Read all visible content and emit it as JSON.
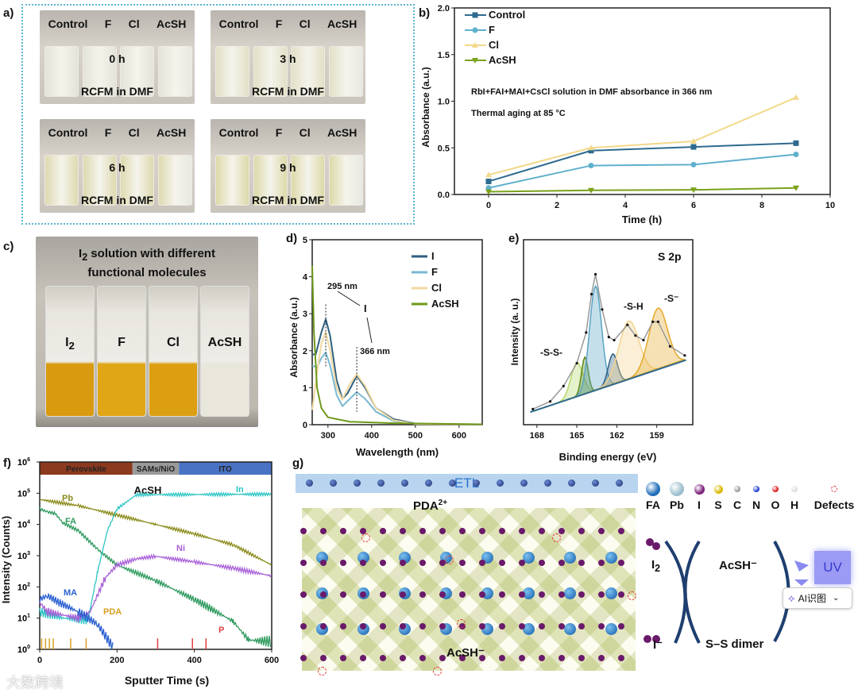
{
  "panel_labels": {
    "a": "a)",
    "b": "b)",
    "c": "c)",
    "d": "d)",
    "e": "e)",
    "f": "f)",
    "g": "g)"
  },
  "panel_a": {
    "vial_labels": [
      "Control",
      "F",
      "Cl",
      "AcSH"
    ],
    "caption": "RCFM in DMF",
    "photos": [
      {
        "time": "0 h",
        "tint": "#e4e3d8"
      },
      {
        "time": "3 h",
        "tint": "#e2e0c6"
      },
      {
        "time": "6 h",
        "tint": "#ddd9b0"
      },
      {
        "time": "9 h",
        "tint": "#dcd9a8"
      }
    ]
  },
  "panel_c": {
    "title_line1_pre": "I",
    "title_line1_sub": "2",
    "title_line1_post": " solution with different",
    "title_line2": "functional molecules",
    "vials": [
      {
        "label": "I",
        "sub": "2",
        "color": "#d99a10"
      },
      {
        "label": "F",
        "sub": "",
        "color": "#e0a616"
      },
      {
        "label": "Cl",
        "sub": "",
        "color": "#dc9f12"
      },
      {
        "label": "AcSH",
        "sub": "",
        "color": "#e9e6dc"
      }
    ]
  },
  "chart_data": [
    {
      "id": "b",
      "type": "line",
      "xlabel": "Time (h)",
      "ylabel": "Absorbance (a.u.)",
      "xlim": [
        -1,
        10
      ],
      "ylim": [
        0,
        2.0
      ],
      "xticks": [
        0,
        2,
        4,
        6,
        8,
        10
      ],
      "yticks": [
        "0.0",
        "0.5",
        "1.0",
        "1.5",
        "2.0"
      ],
      "annotations": [
        "RbI+FAI+MAI+CsCl solution in DMF absorbance in 366 nm",
        "Thermal aging at 85 °C"
      ],
      "legend": "top-left",
      "x": [
        0,
        3,
        6,
        9
      ],
      "series": [
        {
          "name": "Control",
          "color": "#2e6a8e",
          "marker": "square",
          "values": [
            0.14,
            0.47,
            0.51,
            0.55
          ]
        },
        {
          "name": "F",
          "color": "#5fb0cc",
          "marker": "circle",
          "values": [
            0.07,
            0.31,
            0.32,
            0.43
          ]
        },
        {
          "name": "Cl",
          "color": "#f2d98a",
          "marker": "triangle",
          "values": [
            0.21,
            0.5,
            0.57,
            1.04
          ]
        },
        {
          "name": "AcSH",
          "color": "#7aa21c",
          "marker": "triangle-down",
          "values": [
            0.03,
            0.045,
            0.05,
            0.07
          ]
        }
      ]
    },
    {
      "id": "d",
      "type": "line",
      "xlabel": "Wavelength (nm)",
      "ylabel": "Absorbance (a.u.)",
      "xlim": [
        264,
        653
      ],
      "ylim": [
        0,
        5
      ],
      "xticks": [
        300,
        400,
        500,
        600
      ],
      "yticks": [
        "0",
        "1",
        "2",
        "3",
        "4",
        "5"
      ],
      "legend": "top-right",
      "annotations": {
        "peak1": "295 nm",
        "peak2": "366 nm",
        "species": "I",
        "species_sub": "3",
        "species_sup": "−"
      },
      "series": [
        {
          "name": "I",
          "sub": "2",
          "color": "#2e5f80",
          "points": [
            [
              264,
              1.9
            ],
            [
              272,
              1.9
            ],
            [
              285,
              2.5
            ],
            [
              295,
              2.85
            ],
            [
              305,
              2.4
            ],
            [
              320,
              1.2
            ],
            [
              333,
              0.7
            ],
            [
              345,
              0.85
            ],
            [
              366,
              1.32
            ],
            [
              385,
              1.0
            ],
            [
              410,
              0.45
            ],
            [
              450,
              0.15
            ],
            [
              500,
              0.03
            ],
            [
              515,
              0.02
            ]
          ]
        },
        {
          "name": "F",
          "sub": "",
          "color": "#79b8d2",
          "points": [
            [
              264,
              1.6
            ],
            [
              275,
              1.55
            ],
            [
              285,
              1.8
            ],
            [
              295,
              1.95
            ],
            [
              305,
              1.6
            ],
            [
              320,
              0.8
            ],
            [
              333,
              0.5
            ],
            [
              350,
              0.7
            ],
            [
              366,
              0.88
            ],
            [
              385,
              0.7
            ],
            [
              410,
              0.35
            ],
            [
              450,
              0.1
            ],
            [
              500,
              0.02
            ]
          ]
        },
        {
          "name": "Cl",
          "sub": "",
          "color": "#f0d9a0",
          "points": [
            [
              264,
              0.4
            ],
            [
              275,
              1.4
            ],
            [
              285,
              2.2
            ],
            [
              295,
              2.5
            ],
            [
              305,
              2.0
            ],
            [
              320,
              1.0
            ],
            [
              333,
              0.68
            ],
            [
              350,
              1.1
            ],
            [
              366,
              1.36
            ],
            [
              385,
              1.05
            ],
            [
              410,
              0.45
            ],
            [
              450,
              0.12
            ],
            [
              500,
              0.02
            ],
            [
              653,
              0.01
            ]
          ]
        },
        {
          "name": "AcSH",
          "sub": "",
          "color": "#6f9a1a",
          "points": [
            [
              264,
              4.3
            ],
            [
              268,
              2.5
            ],
            [
              275,
              1.0
            ],
            [
              285,
              0.45
            ],
            [
              300,
              0.2
            ],
            [
              350,
              0.08
            ],
            [
              450,
              0.04
            ],
            [
              653,
              0.01
            ]
          ]
        }
      ]
    },
    {
      "id": "e",
      "type": "line",
      "xlabel": "Binding energy (eV)",
      "ylabel": "Intensity (a. u.)",
      "xlim": [
        169,
        156.3
      ],
      "ylim": [
        0,
        1
      ],
      "xticks": [
        168,
        165,
        162,
        159
      ],
      "title": "S 2p",
      "peak_labels": [
        "-S-S-",
        "-S-H",
        "-S⁻"
      ],
      "baseline": [
        [
          168.5,
          0.03
        ],
        [
          156.8,
          0.37
        ]
      ],
      "components": [
        {
          "center": 165.0,
          "height": 0.22,
          "width": 0.45,
          "color": "#b5d86a"
        },
        {
          "center": 164.4,
          "height": 0.24,
          "width": 0.25,
          "color": "#5a8a1c"
        },
        {
          "center": 163.6,
          "height": 0.68,
          "width": 0.45,
          "color": "#5aa4c4"
        },
        {
          "center": 162.3,
          "height": 0.2,
          "width": 0.35,
          "color": "#2e5f80"
        },
        {
          "center": 161.1,
          "height": 0.38,
          "width": 0.75,
          "color": "#f3d38c"
        },
        {
          "center": 158.9,
          "height": 0.4,
          "width": 0.7,
          "color": "#e5a82a"
        }
      ],
      "envelope": [
        [
          168.3,
          0.05
        ],
        [
          167,
          0.1
        ],
        [
          166,
          0.2
        ],
        [
          165,
          0.35
        ],
        [
          164.3,
          0.55
        ],
        [
          163.9,
          0.8
        ],
        [
          163.6,
          0.93
        ],
        [
          163.1,
          0.7
        ],
        [
          162.6,
          0.52
        ],
        [
          162.2,
          0.5
        ],
        [
          161.2,
          0.6
        ],
        [
          160.6,
          0.53
        ],
        [
          160,
          0.5
        ],
        [
          159.3,
          0.62
        ],
        [
          158.9,
          0.62
        ],
        [
          158,
          0.46
        ],
        [
          156.9,
          0.4
        ]
      ]
    },
    {
      "id": "f",
      "type": "line",
      "xlabel": "Sputter Time (s)",
      "ylabel": "Intensity (Counts)",
      "xlim": [
        0,
        600
      ],
      "ylim_log10": [
        0,
        6
      ],
      "yscale": "log",
      "xticks": [
        0,
        200,
        400,
        600
      ],
      "yticks_exp": [
        "0",
        "1",
        "2",
        "3",
        "4",
        "5",
        "6"
      ],
      "title": "AcSH",
      "layers": [
        {
          "name": "Perovskite",
          "from": 0,
          "to": 240,
          "color": "#8b3a1e"
        },
        {
          "name": "SAMs/NiO",
          "sub": "x",
          "from": 240,
          "to": 360,
          "color": "#9a9a9a"
        },
        {
          "name": "ITO",
          "from": 360,
          "to": 600,
          "color": "#4a72c4"
        }
      ],
      "series": [
        {
          "name": "Pb",
          "sup": "+",
          "color": "#8a8a1a",
          "log_points": [
            [
              0,
              4.8
            ],
            [
              100,
              4.6
            ],
            [
              200,
              4.3
            ],
            [
              300,
              4.0
            ],
            [
              400,
              3.7
            ],
            [
              500,
              3.35
            ],
            [
              600,
              2.7
            ]
          ]
        },
        {
          "name": "FA",
          "sup": "+",
          "color": "#2e9a5e",
          "log_points": [
            [
              0,
              4.5
            ],
            [
              20,
              4.4
            ],
            [
              40,
              4.35
            ],
            [
              60,
              4.05
            ],
            [
              100,
              3.8
            ],
            [
              150,
              3.2
            ],
            [
              200,
              2.7
            ],
            [
              300,
              2.2
            ],
            [
              400,
              1.6
            ],
            [
              500,
              0.9
            ],
            [
              540,
              0.3
            ],
            [
              600,
              0.25
            ]
          ]
        },
        {
          "name": "In",
          "sup": "+",
          "color": "#2cc4c4",
          "log_points": [
            [
              0,
              1.2
            ],
            [
              60,
              1.0
            ],
            [
              125,
              0.95
            ],
            [
              150,
              2.5
            ],
            [
              175,
              3.8
            ],
            [
              200,
              4.5
            ],
            [
              250,
              4.95
            ],
            [
              600,
              4.97
            ]
          ]
        },
        {
          "name": "Ni",
          "sup": "+",
          "color": "#a860d8",
          "log_points": [
            [
              0,
              1.5
            ],
            [
              20,
              1.2
            ],
            [
              100,
              1.0
            ],
            [
              130,
              1.2
            ],
            [
              170,
              2.3
            ],
            [
              200,
              2.7
            ],
            [
              250,
              2.9
            ],
            [
              300,
              2.98
            ],
            [
              400,
              2.8
            ],
            [
              500,
              2.6
            ],
            [
              600,
              2.35
            ]
          ]
        },
        {
          "name": "MA",
          "sup": "+",
          "color": "#2a5fd0",
          "log_points": [
            [
              0,
              1.6
            ],
            [
              20,
              1.72
            ],
            [
              50,
              1.5
            ],
            [
              100,
              1.2
            ],
            [
              150,
              0.8
            ],
            [
              190,
              0.05
            ]
          ]
        },
        {
          "name": "PDA",
          "sup": "+",
          "color": "#d8a020",
          "spikes": [
            5,
            15,
            25,
            35,
            80,
            120
          ]
        },
        {
          "name": "P",
          "sup": "+",
          "color": "#e04040",
          "spikes": [
            305,
            395,
            430
          ]
        }
      ]
    }
  ],
  "panel_g": {
    "etl_label": "ETL",
    "pda_label": "PDA",
    "pda_sup": "2+",
    "acsh_bottom": "AcSH⁻",
    "legend": [
      {
        "label": "FA",
        "color": "#1e6eb8"
      },
      {
        "label": "Pb",
        "color": "#9dbfcf"
      },
      {
        "label": "I",
        "color": "#7a1f7a"
      },
      {
        "label": "S",
        "color": "#d8b800"
      },
      {
        "label": "C",
        "color": "#999999"
      },
      {
        "label": "N",
        "color": "#1f3fd0"
      },
      {
        "label": "O",
        "color": "#e02020"
      },
      {
        "label": "H",
        "color": "#dddddd"
      },
      {
        "label": "Defects",
        "color": "#e04040"
      }
    ],
    "cycle": {
      "i2": "I",
      "i2_sub": "2",
      "acsh": "AcSH⁻",
      "iminus": "I⁻",
      "dimer": "S–S dimer",
      "uv": "UV"
    }
  },
  "overlay": {
    "ai_badge": "AI识图",
    "watermark": "大数跨境"
  }
}
